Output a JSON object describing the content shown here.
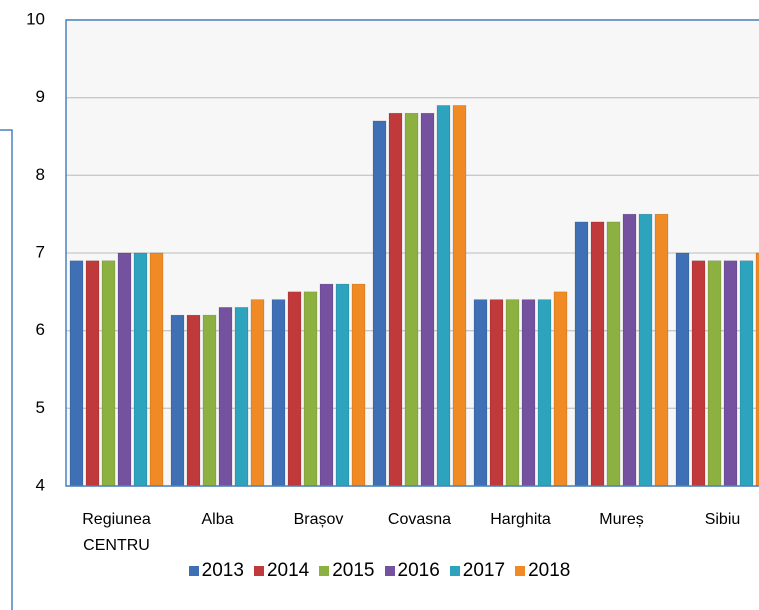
{
  "chart_data": {
    "type": "bar",
    "categories": [
      "Regiunea CENTRU",
      "Alba",
      "Brașov",
      "Covasna",
      "Harghita",
      "Mureș",
      "Sibiu"
    ],
    "series": [
      {
        "name": "2013",
        "color": "#3f6fb5",
        "values": [
          6.9,
          6.2,
          6.4,
          8.7,
          6.4,
          7.4,
          7.0
        ]
      },
      {
        "name": "2014",
        "color": "#c0393b",
        "values": [
          6.9,
          6.2,
          6.5,
          8.8,
          6.4,
          7.4,
          6.9
        ]
      },
      {
        "name": "2015",
        "color": "#8db140",
        "values": [
          6.9,
          6.2,
          6.5,
          8.8,
          6.4,
          7.4,
          6.9
        ]
      },
      {
        "name": "2016",
        "color": "#7452a0",
        "values": [
          7.0,
          6.3,
          6.6,
          8.8,
          6.4,
          7.5,
          6.9
        ]
      },
      {
        "name": "2017",
        "color": "#2ea3bd",
        "values": [
          7.0,
          6.3,
          6.6,
          8.9,
          6.4,
          7.5,
          6.9
        ]
      },
      {
        "name": "2018",
        "color": "#f08a24",
        "values": [
          7.0,
          6.4,
          6.6,
          8.9,
          6.5,
          7.5,
          7.0
        ]
      }
    ],
    "ylim": [
      4,
      10
    ],
    "yticks": [
      4,
      5,
      6,
      7,
      8,
      9,
      10
    ],
    "grid": true,
    "legend": "bottom"
  }
}
